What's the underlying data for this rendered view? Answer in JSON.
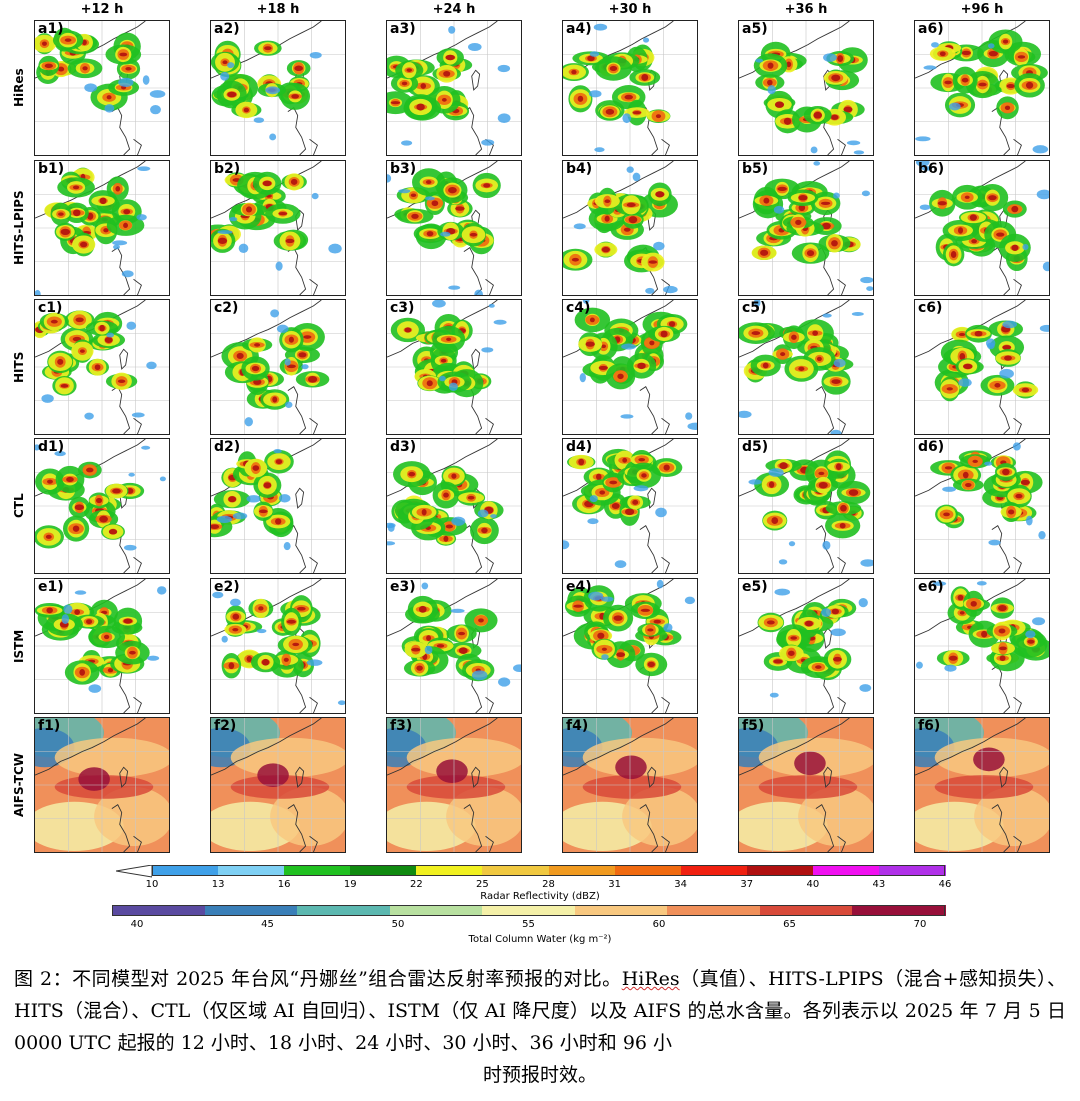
{
  "columns": [
    "+12 h",
    "+18 h",
    "+24 h",
    "+30 h",
    "+36 h",
    "+96 h"
  ],
  "rows": [
    {
      "label": "HiRes",
      "prefix": "a",
      "kind": "radar"
    },
    {
      "label": "HITS-LPIPS",
      "prefix": "b",
      "kind": "radar"
    },
    {
      "label": "HITS",
      "prefix": "c",
      "kind": "radar"
    },
    {
      "label": "CTL",
      "prefix": "d",
      "kind": "radar"
    },
    {
      "label": "ISTM",
      "prefix": "e",
      "kind": "radar"
    },
    {
      "label": "AIFS-TCW",
      "prefix": "f",
      "kind": "tcw"
    }
  ],
  "panel_labels": [
    [
      "a1)",
      "a2)",
      "a3)",
      "a4)",
      "a5)",
      "a6)"
    ],
    [
      "b1)",
      "b2)",
      "b3)",
      "b4)",
      "b5)",
      "b6)"
    ],
    [
      "c1)",
      "c2)",
      "c3)",
      "c4)",
      "c5)",
      "c6)"
    ],
    [
      "d1)",
      "d2)",
      "d3)",
      "d4)",
      "d5)",
      "d6)"
    ],
    [
      "e1)",
      "e2)",
      "e3)",
      "e4)",
      "e5)",
      "e6)"
    ],
    [
      "f1)",
      "f2)",
      "f3)",
      "f4)",
      "f5)",
      "f6)"
    ]
  ],
  "radar_colorbar": {
    "ticks": [
      "10",
      "13",
      "16",
      "19",
      "22",
      "25",
      "28",
      "31",
      "34",
      "37",
      "40",
      "43",
      "46"
    ],
    "colors": [
      "#3fa0e8",
      "#7fd0f4",
      "#20c020",
      "#108a10",
      "#f0f020",
      "#f0c840",
      "#f09a20",
      "#f06a10",
      "#f02010",
      "#b01010",
      "#f010f0",
      "#b030e8"
    ],
    "title": "Radar Reflectivity (dBZ)"
  },
  "tcw_colorbar": {
    "ticks": [
      "40",
      "45",
      "50",
      "55",
      "60",
      "65",
      "70"
    ],
    "colors": [
      "#5a4aa0",
      "#3a7fb8",
      "#5cb8b0",
      "#b8e0a0",
      "#f4f0a8",
      "#f8c880",
      "#f0905a",
      "#d84a3a",
      "#98103a"
    ],
    "title": "Total Column Water (kg m⁻²)"
  },
  "caption": {
    "part1": "图 2：不同模型对 2025 年台风“丹娜丝”组合雷达反射率预报的对比。",
    "hires": "HiRes",
    "part2": "（真值）、HITS-LPIPS（混合+感知损失）、HITS（混合）、CTL（仅区域 AI 自回归）、ISTM（仅 AI 降尺度）以及 AIFS 的总水含量。各列表示以 2025 年 7 月 5 日 0000 UTC 起报的 12 小时、18 小时、24 小时、30 小时、36 小时和 96 小",
    "last": "时预报时效。"
  }
}
